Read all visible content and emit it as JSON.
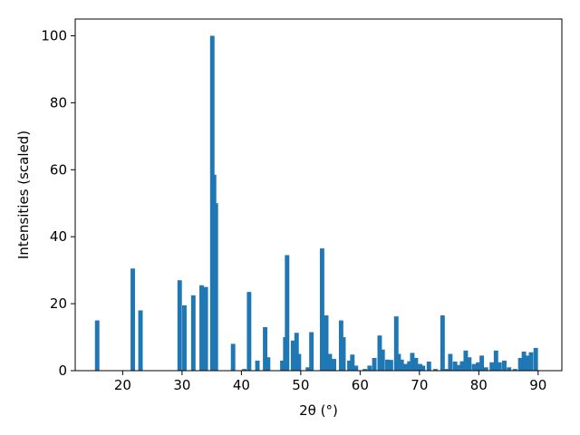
{
  "chart_data": {
    "type": "bar",
    "title": "",
    "xlabel": "2θ (°)",
    "ylabel": "Intensities (scaled)",
    "xlim": [
      12,
      94
    ],
    "ylim": [
      0,
      105
    ],
    "xticks": [
      20,
      30,
      40,
      50,
      60,
      70,
      80,
      90
    ],
    "yticks": [
      0,
      20,
      40,
      60,
      80,
      100
    ],
    "bar_width": 0.75,
    "color": "#1f77b4",
    "grid": false,
    "x": [
      15.7,
      21.7,
      23.0,
      29.6,
      30.4,
      31.9,
      33.3,
      34.0,
      35.1,
      35.4,
      35.7,
      38.6,
      40.5,
      41.3,
      42.7,
      44.0,
      44.5,
      46.9,
      47.4,
      47.7,
      48.7,
      49.3,
      49.7,
      51.2,
      51.8,
      53.6,
      54.3,
      54.9,
      55.6,
      56.8,
      57.2,
      58.2,
      58.7,
      59.3,
      60.8,
      61.6,
      62.4,
      63.3,
      63.8,
      64.6,
      65.2,
      66.1,
      66.5,
      67.0,
      67.7,
      68.3,
      68.8,
      69.4,
      70.1,
      70.6,
      71.6,
      72.7,
      73.9,
      74.5,
      75.2,
      76.0,
      76.5,
      77.2,
      77.8,
      78.4,
      79.2,
      79.9,
      80.5,
      81.2,
      82.2,
      82.9,
      83.5,
      84.3,
      85.1,
      86.1,
      87.0,
      87.6,
      88.2,
      88.8,
      89.6
    ],
    "values": [
      15,
      30.5,
      18,
      27,
      19.5,
      22.5,
      25.5,
      25,
      100,
      58.5,
      50,
      8,
      0.5,
      23.5,
      3,
      13,
      4,
      3,
      10,
      34.5,
      9,
      11.3,
      5,
      1,
      11.5,
      36.5,
      16.5,
      5,
      3.5,
      15,
      10,
      3,
      4.8,
      1.5,
      0.5,
      1.5,
      3.8,
      10.5,
      6.3,
      3.3,
      3.2,
      16.2,
      5,
      3.3,
      2,
      2.8,
      5.3,
      3.8,
      2,
      1.5,
      2.7,
      0.5,
      16.5,
      0.5,
      5,
      2.7,
      1.7,
      2.8,
      6,
      4,
      2,
      2.5,
      4.5,
      1,
      2.5,
      6,
      2.5,
      3,
      1,
      0.5,
      3.8,
      5.7,
      4.5,
      5.5,
      6.8
    ]
  }
}
